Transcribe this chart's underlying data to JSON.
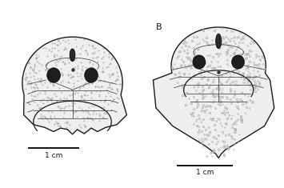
{
  "bg_color": "white",
  "line_color": "#1a1a1a",
  "label_B": "B",
  "scale_label": "1 cm",
  "fig_width": 3.55,
  "fig_height": 2.35,
  "dpi": 100
}
